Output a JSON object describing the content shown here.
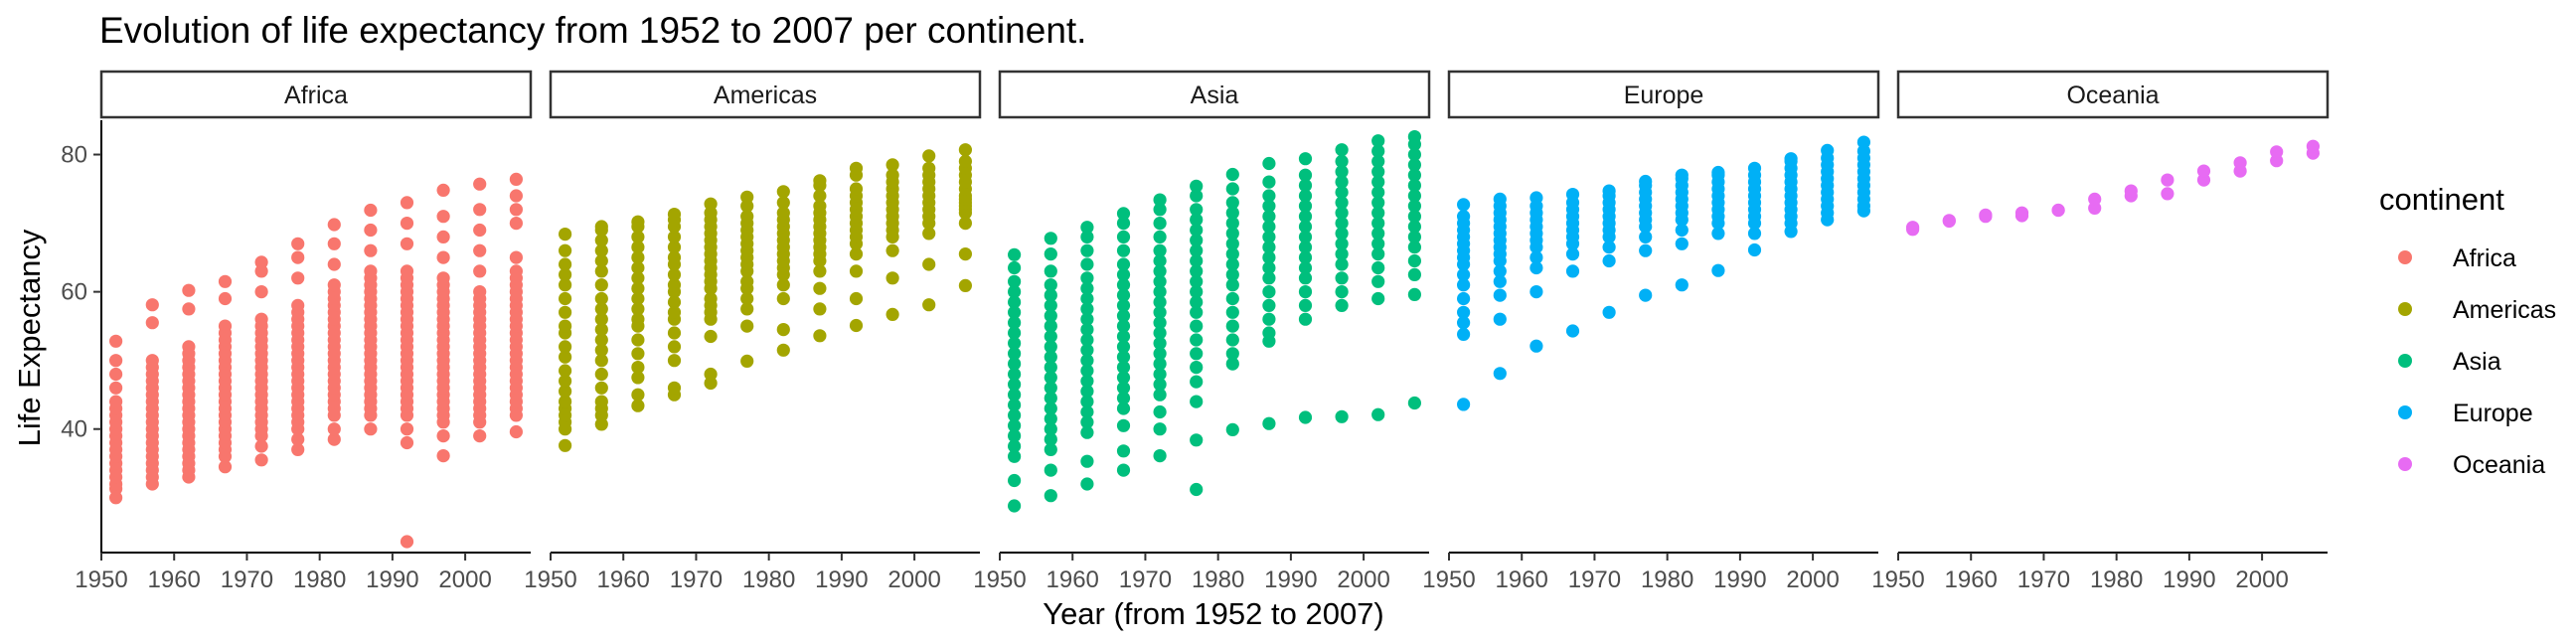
{
  "chart_data": {
    "type": "scatter",
    "title": "Evolution of life expectancy from 1952 to 2007 per continent.",
    "xlabel": "Year (from 1952 to 2007)",
    "ylabel": "Life Expectancy",
    "facet_by": "continent",
    "panels": [
      "Africa",
      "Americas",
      "Asia",
      "Europe",
      "Oceania"
    ],
    "xlim": [
      1950,
      2009
    ],
    "ylim": [
      22,
      85
    ],
    "x_ticks": [
      1950,
      1960,
      1970,
      1980,
      1990,
      2000
    ],
    "y_ticks": [
      40,
      60,
      80
    ],
    "grid": false,
    "legend": {
      "title": "continent",
      "position": "right",
      "entries": [
        {
          "name": "Africa",
          "color": "#F8766D"
        },
        {
          "name": "Americas",
          "color": "#A3A500"
        },
        {
          "name": "Asia",
          "color": "#00BF7D"
        },
        {
          "name": "Europe",
          "color": "#00B0F6"
        },
        {
          "name": "Oceania",
          "color": "#E76BF3"
        }
      ]
    },
    "years": [
      1952,
      1957,
      1962,
      1967,
      1972,
      1977,
      1982,
      1987,
      1992,
      1997,
      2002,
      2007
    ],
    "series": [
      {
        "name": "Africa",
        "color": "#F8766D",
        "values": {
          "1952": [
            30.0,
            31.3,
            32.0,
            33.0,
            34.0,
            35.0,
            36.0,
            37.0,
            38.0,
            39.0,
            40.0,
            41.0,
            42.0,
            43.0,
            44.0,
            46.0,
            48.0,
            50.0,
            52.8
          ],
          "1957": [
            32.0,
            33.0,
            34.0,
            35.0,
            36.0,
            37.0,
            38.0,
            39.0,
            40.0,
            41.0,
            42.0,
            43.0,
            44.0,
            45.0,
            46.0,
            47.0,
            48.0,
            49.0,
            50.0,
            55.5,
            58.1
          ],
          "1962": [
            33.0,
            34.0,
            35.0,
            36.0,
            37.0,
            38.0,
            39.0,
            40.0,
            41.0,
            42.0,
            43.0,
            44.0,
            45.0,
            46.0,
            47.0,
            48.0,
            49.0,
            50.0,
            51.0,
            52.0,
            57.5,
            60.2
          ],
          "1967": [
            34.5,
            36.0,
            37.0,
            38.0,
            39.0,
            40.0,
            41.0,
            42.0,
            43.0,
            44.0,
            45.0,
            46.0,
            47.0,
            48.0,
            49.0,
            50.0,
            51.0,
            52.0,
            53.0,
            54.0,
            55.0,
            59.0,
            61.5
          ],
          "1972": [
            35.5,
            37.5,
            39.0,
            40.0,
            41.0,
            42.0,
            43.0,
            44.0,
            45.0,
            46.0,
            47.0,
            48.0,
            49.0,
            50.0,
            51.0,
            52.0,
            53.0,
            54.0,
            55.0,
            56.0,
            60.0,
            63.0,
            64.3
          ],
          "1977": [
            37.0,
            38.5,
            40.0,
            41.0,
            42.0,
            43.0,
            44.0,
            45.0,
            46.0,
            47.0,
            48.0,
            49.0,
            50.0,
            51.0,
            52.0,
            53.0,
            54.0,
            55.0,
            56.0,
            57.0,
            58.0,
            62.0,
            65.0,
            67.0
          ],
          "1982": [
            38.5,
            40.0,
            42.0,
            43.0,
            44.0,
            45.0,
            46.0,
            47.0,
            48.0,
            49.0,
            50.0,
            51.0,
            52.0,
            53.0,
            54.0,
            55.0,
            56.0,
            57.0,
            58.0,
            59.0,
            60.0,
            61.0,
            64.0,
            67.0,
            69.8
          ],
          "1987": [
            40.0,
            42.0,
            43.0,
            44.0,
            45.0,
            46.0,
            47.0,
            48.0,
            49.0,
            50.0,
            51.0,
            52.0,
            53.0,
            54.0,
            55.0,
            56.0,
            57.0,
            58.0,
            59.0,
            60.0,
            61.0,
            62.0,
            63.0,
            66.0,
            69.0,
            71.9
          ],
          "1992": [
            23.6,
            38.0,
            40.0,
            42.0,
            43.0,
            44.0,
            45.0,
            46.0,
            47.0,
            48.0,
            49.0,
            50.0,
            51.0,
            52.0,
            53.0,
            54.0,
            55.0,
            56.0,
            57.0,
            58.0,
            59.0,
            60.0,
            61.0,
            62.0,
            63.0,
            67.0,
            70.0,
            73.0
          ],
          "1997": [
            36.1,
            39.0,
            41.0,
            42.0,
            43.0,
            44.0,
            45.0,
            46.0,
            47.0,
            48.0,
            49.0,
            50.0,
            51.0,
            52.0,
            53.0,
            54.0,
            55.0,
            56.0,
            57.0,
            58.0,
            59.0,
            60.0,
            61.0,
            62.0,
            65.0,
            68.0,
            71.0,
            74.8
          ],
          "2002": [
            39.0,
            41.0,
            42.0,
            43.0,
            44.0,
            45.0,
            46.0,
            47.0,
            48.0,
            49.0,
            50.0,
            51.0,
            52.0,
            53.0,
            54.0,
            55.0,
            56.0,
            57.0,
            58.0,
            59.0,
            60.0,
            63.0,
            66.0,
            69.0,
            72.0,
            75.7
          ],
          "2007": [
            39.6,
            42.0,
            43.0,
            44.0,
            45.0,
            46.0,
            47.0,
            48.0,
            49.0,
            50.0,
            51.0,
            52.0,
            53.0,
            54.0,
            55.0,
            56.0,
            57.0,
            58.0,
            59.0,
            60.0,
            61.0,
            62.0,
            63.0,
            65.0,
            70.0,
            72.0,
            74.0,
            76.4
          ]
        }
      },
      {
        "name": "Americas",
        "color": "#A3A500",
        "values": {
          "1952": [
            37.6,
            40.0,
            41.0,
            42.0,
            43.0,
            44.0,
            45.5,
            47.0,
            48.5,
            50.5,
            52.0,
            54.0,
            55.0,
            57.0,
            59.0,
            61.0,
            62.5,
            64.0,
            66.0,
            68.4
          ],
          "1957": [
            40.7,
            42.0,
            43.0,
            44.0,
            46.0,
            48.0,
            50.0,
            51.5,
            53.0,
            54.5,
            56.0,
            57.5,
            59.0,
            61.0,
            63.0,
            64.5,
            66.0,
            67.5,
            69.0,
            69.5
          ],
          "1962": [
            43.4,
            45.0,
            47.5,
            49.0,
            51.0,
            53.0,
            55.0,
            56.0,
            57.5,
            59.0,
            60.5,
            62.0,
            63.5,
            65.0,
            66.5,
            68.0,
            69.5,
            70.2
          ],
          "1967": [
            45.0,
            46.0,
            50.0,
            52.0,
            54.0,
            56.0,
            57.0,
            58.5,
            60.0,
            61.0,
            62.5,
            64.0,
            65.0,
            66.5,
            68.0,
            69.5,
            70.5,
            71.3
          ],
          "1972": [
            46.7,
            48.0,
            53.5,
            56.0,
            57.0,
            58.0,
            59.0,
            60.5,
            61.5,
            62.5,
            63.5,
            64.5,
            65.5,
            66.5,
            67.5,
            68.5,
            69.5,
            70.5,
            71.5,
            72.8
          ],
          "1977": [
            49.9,
            55.0,
            57.5,
            59.0,
            60.5,
            61.5,
            63.0,
            64.0,
            65.0,
            66.0,
            67.0,
            68.0,
            69.0,
            70.0,
            71.0,
            72.5,
            73.8
          ],
          "1982": [
            51.5,
            54.5,
            59.0,
            61.0,
            62.5,
            63.5,
            64.5,
            65.5,
            66.5,
            67.5,
            68.5,
            69.5,
            70.5,
            71.5,
            73.0,
            74.6
          ],
          "1987": [
            53.6,
            57.5,
            60.5,
            63.0,
            64.5,
            65.5,
            66.5,
            67.5,
            68.5,
            69.5,
            70.5,
            71.5,
            72.5,
            74.0,
            75.5,
            76.2
          ],
          "1992": [
            55.1,
            59.0,
            63.0,
            65.5,
            67.0,
            68.0,
            69.0,
            70.0,
            71.0,
            72.0,
            73.0,
            74.0,
            75.0,
            77.0,
            78.0
          ],
          "1997": [
            56.7,
            62.0,
            66.0,
            68.0,
            69.0,
            70.0,
            71.0,
            72.0,
            73.0,
            74.0,
            75.0,
            76.0,
            77.0,
            78.5
          ],
          "2002": [
            58.1,
            64.0,
            68.5,
            70.0,
            71.0,
            72.0,
            73.0,
            74.0,
            75.0,
            76.0,
            77.0,
            78.0,
            79.8
          ],
          "2007": [
            60.9,
            65.5,
            70.0,
            71.5,
            72.0,
            72.5,
            73.0,
            73.5,
            74.0,
            75.0,
            76.0,
            77.0,
            78.0,
            79.0,
            80.7
          ]
        }
      },
      {
        "name": "Asia",
        "color": "#00BF7D",
        "values": {
          "1952": [
            28.8,
            32.5,
            36.0,
            37.5,
            39.0,
            40.5,
            42.0,
            43.5,
            45.0,
            46.5,
            48.0,
            49.5,
            51.0,
            52.5,
            54.0,
            55.5,
            57.0,
            58.5,
            60.0,
            61.5,
            63.5,
            65.4
          ],
          "1957": [
            30.3,
            34.0,
            37.0,
            38.5,
            40.0,
            41.5,
            43.0,
            44.5,
            46.0,
            47.5,
            49.0,
            50.5,
            52.0,
            53.5,
            55.0,
            56.5,
            58.0,
            59.5,
            61.0,
            63.0,
            65.5,
            67.8
          ],
          "1962": [
            32.0,
            35.3,
            39.5,
            41.0,
            42.5,
            44.0,
            45.5,
            47.0,
            48.5,
            50.0,
            51.5,
            53.0,
            54.5,
            56.0,
            57.5,
            59.0,
            60.5,
            62.0,
            64.0,
            66.0,
            68.0,
            69.4
          ],
          "1967": [
            34.0,
            36.8,
            40.5,
            43.0,
            44.5,
            46.0,
            47.5,
            49.0,
            50.5,
            52.0,
            53.5,
            55.0,
            56.5,
            58.0,
            59.5,
            61.0,
            62.5,
            64.0,
            66.0,
            68.0,
            70.0,
            71.4
          ],
          "1972": [
            36.1,
            40.0,
            42.5,
            45.0,
            46.5,
            48.0,
            49.5,
            51.0,
            52.5,
            54.0,
            55.5,
            57.0,
            58.5,
            60.0,
            61.5,
            63.0,
            64.5,
            66.0,
            68.0,
            70.0,
            72.0,
            73.4
          ],
          "1977": [
            31.2,
            38.4,
            44.0,
            46.9,
            49.0,
            51.0,
            53.0,
            55.0,
            57.0,
            58.5,
            60.0,
            61.5,
            63.0,
            64.5,
            66.0,
            67.5,
            69.0,
            70.5,
            72.0,
            74.0,
            75.4
          ],
          "1982": [
            39.9,
            49.5,
            51.0,
            53.0,
            55.0,
            57.0,
            59.0,
            61.0,
            62.5,
            64.0,
            65.5,
            67.0,
            68.5,
            70.0,
            71.5,
            73.0,
            75.0,
            77.1
          ],
          "1987": [
            40.8,
            52.8,
            54.0,
            56.0,
            58.0,
            60.0,
            62.0,
            63.5,
            65.0,
            66.5,
            68.0,
            69.5,
            71.0,
            72.5,
            74.0,
            76.0,
            78.7
          ],
          "1992": [
            41.7,
            56.0,
            58.0,
            60.0,
            62.0,
            63.5,
            65.0,
            66.5,
            68.0,
            69.5,
            71.0,
            72.5,
            74.0,
            75.5,
            77.0,
            79.4
          ],
          "1997": [
            41.8,
            58.0,
            60.0,
            62.0,
            64.0,
            65.5,
            67.0,
            68.5,
            70.0,
            71.5,
            73.0,
            74.5,
            76.0,
            77.5,
            79.0,
            80.7
          ],
          "2002": [
            42.1,
            59.0,
            61.5,
            63.5,
            65.5,
            67.0,
            68.5,
            70.0,
            71.5,
            73.0,
            74.5,
            76.0,
            77.5,
            79.0,
            80.5,
            82.0
          ],
          "2007": [
            43.8,
            59.6,
            62.5,
            64.5,
            66.5,
            68.0,
            69.5,
            71.0,
            72.5,
            74.0,
            75.5,
            77.0,
            78.5,
            80.0,
            81.5,
            82.6
          ]
        }
      },
      {
        "name": "Europe",
        "color": "#00B0F6",
        "values": {
          "1952": [
            43.6,
            53.8,
            55.5,
            57.0,
            59.0,
            61.0,
            62.5,
            64.0,
            65.0,
            66.0,
            67.0,
            68.0,
            69.0,
            70.0,
            71.0,
            72.7
          ],
          "1957": [
            48.1,
            56.0,
            59.5,
            61.5,
            63.0,
            64.5,
            65.5,
            66.5,
            67.5,
            68.5,
            69.5,
            70.5,
            71.5,
            72.5,
            73.5
          ],
          "1962": [
            52.1,
            60.0,
            63.5,
            65.0,
            66.5,
            67.5,
            68.5,
            69.5,
            70.5,
            71.5,
            72.5,
            73.7
          ],
          "1967": [
            54.3,
            63.0,
            65.5,
            67.0,
            68.0,
            69.0,
            70.0,
            71.0,
            72.0,
            73.0,
            74.2
          ],
          "1972": [
            57.0,
            64.5,
            66.5,
            68.0,
            69.0,
            70.0,
            71.0,
            72.0,
            73.0,
            74.0,
            74.7
          ],
          "1977": [
            59.5,
            66.0,
            68.0,
            69.5,
            70.5,
            71.5,
            72.5,
            73.5,
            74.5,
            75.5,
            76.1
          ],
          "1982": [
            61.0,
            67.0,
            69.0,
            70.5,
            71.5,
            72.5,
            73.5,
            74.5,
            75.5,
            76.5,
            77.0
          ],
          "1987": [
            63.1,
            68.5,
            70.0,
            71.0,
            72.0,
            73.0,
            74.0,
            75.0,
            76.0,
            77.0,
            77.4
          ],
          "1992": [
            66.1,
            68.5,
            70.0,
            71.0,
            72.0,
            73.0,
            74.0,
            75.0,
            76.0,
            77.0,
            78.0
          ],
          "1997": [
            68.8,
            70.0,
            71.0,
            72.0,
            73.0,
            74.0,
            75.0,
            76.0,
            77.0,
            78.0,
            79.0,
            79.4
          ],
          "2002": [
            70.5,
            71.5,
            72.5,
            73.5,
            74.5,
            75.5,
            76.5,
            77.5,
            78.5,
            79.5,
            80.6
          ],
          "2007": [
            71.8,
            72.5,
            73.5,
            74.5,
            75.5,
            76.5,
            77.5,
            78.5,
            79.5,
            80.5,
            81.8
          ]
        }
      },
      {
        "name": "Oceania",
        "color": "#E76BF3",
        "values": {
          "1952": [
            69.1,
            69.4
          ],
          "1957": [
            70.3,
            70.4
          ],
          "1962": [
            71.0,
            71.2
          ],
          "1967": [
            71.1,
            71.5
          ],
          "1972": [
            71.9,
            71.9
          ],
          "1977": [
            72.2,
            73.5
          ],
          "1982": [
            74.0,
            74.7
          ],
          "1987": [
            74.3,
            76.3
          ],
          "1992": [
            76.3,
            77.6
          ],
          "1997": [
            77.6,
            78.8
          ],
          "2002": [
            79.1,
            80.4
          ],
          "2007": [
            80.2,
            81.2
          ]
        }
      }
    ]
  }
}
